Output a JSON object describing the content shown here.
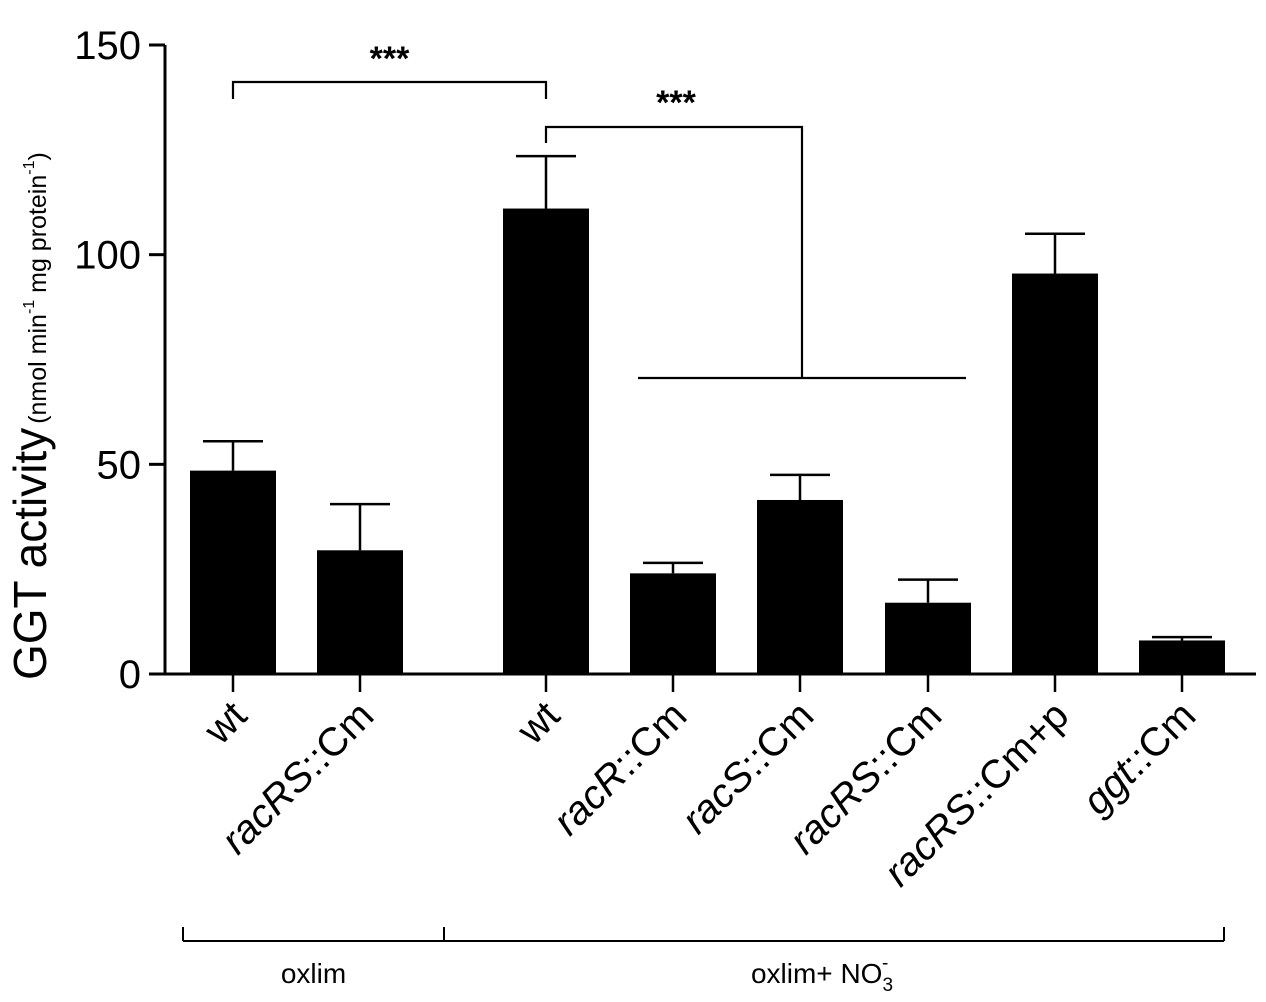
{
  "chart_data": {
    "type": "bar",
    "ylabel": "GGT activity",
    "ylabel_unit": "(nmol min",
    "ylabel_unit_exp1": "-1",
    "ylabel_unit_mid": " mg protein",
    "ylabel_unit_exp2": "-1",
    "ylabel_unit_end": ")",
    "ylim": [
      0,
      150
    ],
    "yticks": [
      {
        "value": 0,
        "label": "0"
      },
      {
        "value": 50,
        "label": "50"
      },
      {
        "value": 100,
        "label": "100"
      },
      {
        "value": 150,
        "label": "150"
      }
    ],
    "categories": [
      {
        "label": "wt",
        "italic": "",
        "rest": "wt",
        "value": 48.5,
        "error": 7.0
      },
      {
        "label": "racRS::Cm",
        "italic": "racRS",
        "rest": "::Cm",
        "value": 29.5,
        "error": 11.0
      },
      {
        "label": "wt",
        "italic": "",
        "rest": "wt",
        "value": 111.0,
        "error": 12.5
      },
      {
        "label": "racR::Cm",
        "italic": "racR",
        "rest": "::Cm",
        "value": 24.0,
        "error": 2.5
      },
      {
        "label": "racS::Cm",
        "italic": "racS",
        "rest": "::Cm",
        "value": 41.5,
        "error": 6.0
      },
      {
        "label": "racRS::Cm",
        "italic": "racRS",
        "rest": "::Cm",
        "value": 17.0,
        "error": 5.5
      },
      {
        "label": "racRS::Cm+p",
        "italic": "racRS",
        "rest": "::Cm+p",
        "value": 95.5,
        "error": 9.5
      },
      {
        "label": "ggt::Cm",
        "italic": "ggt",
        "rest": "::Cm",
        "value": 8.0,
        "error": 0.8
      }
    ],
    "groups": [
      {
        "label": "oxlim",
        "from": 0,
        "to": 1
      },
      {
        "label": "oxlim+ NO",
        "sub": "3",
        "sup": "-",
        "from": 2,
        "to": 7
      }
    ],
    "significance": [
      {
        "label": "***",
        "from": 0,
        "to": 2
      },
      {
        "label": "***",
        "from": 2,
        "to": [
          3,
          4,
          5
        ]
      }
    ],
    "colors": {
      "bar": "#000000",
      "axis": "#000000",
      "background": "#ffffff"
    }
  }
}
